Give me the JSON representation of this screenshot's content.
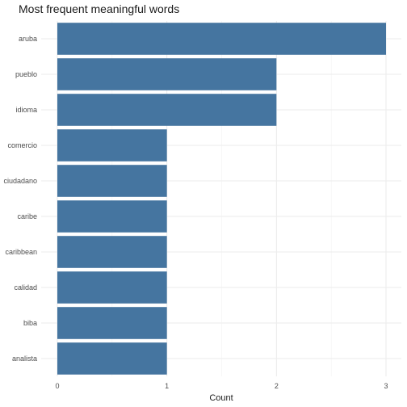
{
  "chart_data": {
    "type": "bar",
    "orientation": "horizontal",
    "title": "Most frequent meaningful words",
    "xlabel": "Count",
    "ylabel": "",
    "categories": [
      "aruba",
      "pueblo",
      "idioma",
      "comercio",
      "ciudadano",
      "caribe",
      "caribbean",
      "calidad",
      "biba",
      "analista"
    ],
    "values": [
      3,
      2,
      2,
      1,
      1,
      1,
      1,
      1,
      1,
      1
    ],
    "xlim": [
      0,
      3
    ],
    "xticks": [
      "0",
      "1",
      "2",
      "3"
    ],
    "grid": true,
    "legend": "none",
    "bar_color": "#4575a0"
  }
}
